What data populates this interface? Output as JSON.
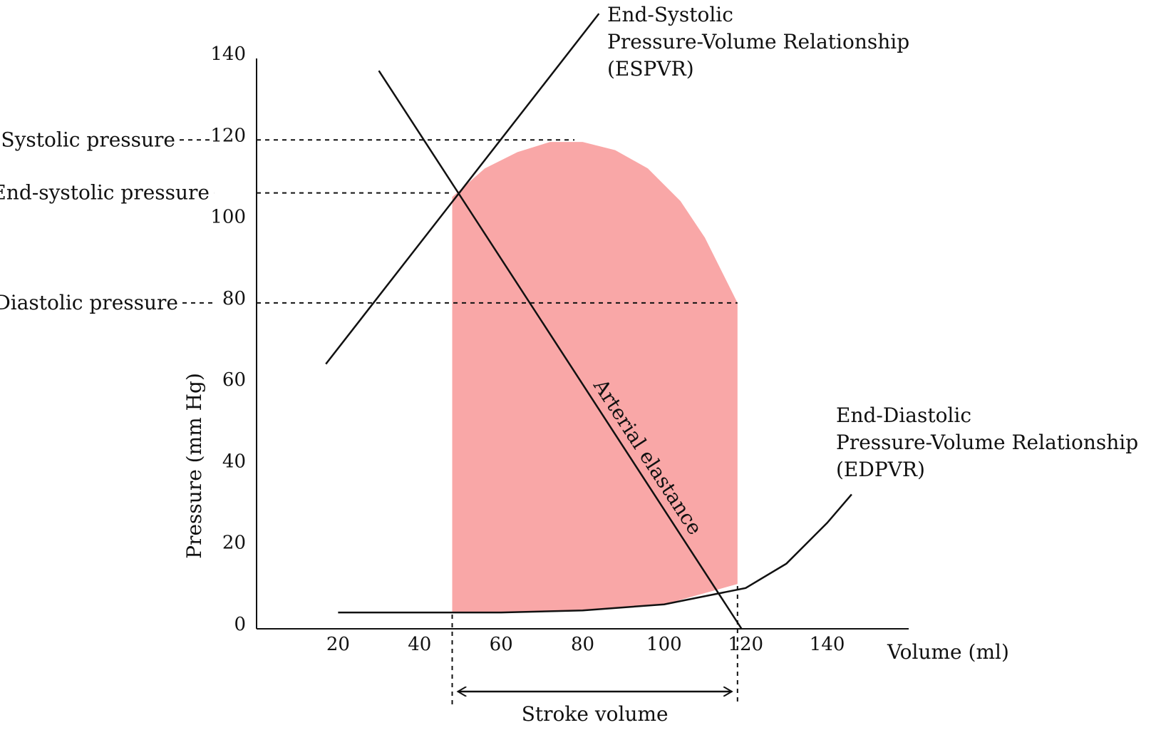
{
  "colors": {
    "fill": "#f9a7a7",
    "ink": "#111111"
  },
  "chart_data": {
    "type": "line",
    "xlabel": "Volume (ml)",
    "ylabel": "Pressure (mm Hg)",
    "xlim": [
      0,
      160
    ],
    "ylim": [
      0,
      140
    ],
    "x_ticks": [
      "20",
      "40",
      "60",
      "80",
      "100",
      "120",
      "140"
    ],
    "y_ticks": [
      "0",
      "20",
      "40",
      "60",
      "80",
      "100",
      "120",
      "140"
    ],
    "levels": [
      {
        "label": "Systolic pressure",
        "value": 120
      },
      {
        "label": "End-systolic pressure",
        "value": 107
      },
      {
        "label": "Diastolic pressure",
        "value": 80
      }
    ],
    "espvr": {
      "label_lines": [
        "End-Systolic",
        "Pressure-Volume Relationship",
        "(ESPVR)"
      ],
      "points": [
        [
          17,
          65
        ],
        [
          84,
          151
        ]
      ]
    },
    "edpvr": {
      "label_lines": [
        "End-Diastolic",
        "Pressure-Volume Relationship",
        "(EDPVR)"
      ],
      "points": [
        [
          20,
          4
        ],
        [
          40,
          4
        ],
        [
          60,
          4
        ],
        [
          80,
          4.5
        ],
        [
          100,
          6
        ],
        [
          110,
          8
        ],
        [
          120,
          10
        ],
        [
          130,
          16
        ],
        [
          140,
          26
        ],
        [
          146,
          33
        ]
      ]
    },
    "arterial_elastance": {
      "label": "Arterial elastance",
      "points": [
        [
          30,
          137
        ],
        [
          119,
          0
        ]
      ]
    },
    "pv_loop": {
      "points": [
        [
          48,
          4
        ],
        [
          48,
          106
        ],
        [
          56,
          113
        ],
        [
          64,
          117
        ],
        [
          72,
          119.5
        ],
        [
          80,
          119.5
        ],
        [
          88,
          117.5
        ],
        [
          96,
          113
        ],
        [
          104,
          105
        ],
        [
          110,
          96
        ],
        [
          114,
          88
        ],
        [
          118,
          80
        ],
        [
          118,
          11
        ],
        [
          100,
          6
        ],
        [
          80,
          4.5
        ],
        [
          60,
          4
        ]
      ]
    },
    "stroke_volume": {
      "label": "Stroke volume",
      "from": 48,
      "to": 118
    }
  }
}
